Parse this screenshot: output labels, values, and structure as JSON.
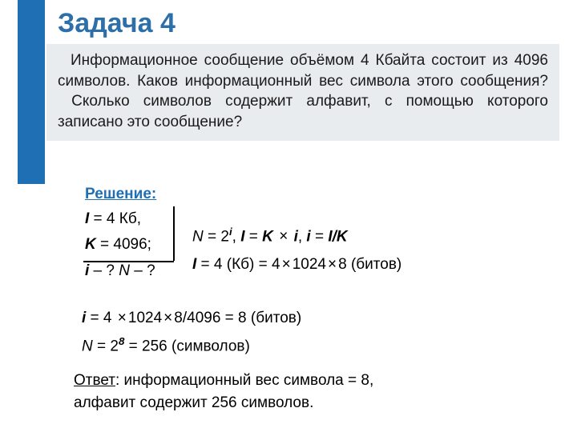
{
  "title": "Задача 4",
  "problem_text": "  Информационное сообщение объёмом 4 Кбайта состоит из 4096 символов. Каков информационный вес символа этого сообщения?  Сколько символов содержит алфавит, с помощью которого записано это сообщение?",
  "solution_label": "Решение:",
  "given": {
    "line1_var": "I",
    "line1_rest": " = 4 Кб,",
    "line2_var": "K",
    "line2_rest": " = 4096;",
    "line3_a": "i",
    "line3_mid": " – ?  ",
    "line3_b": "N",
    "line3_end": "  – ?"
  },
  "formulas": {
    "row1_pre": "N",
    "row1_a": " = 2",
    "row1_exp": "i",
    "row1_b": ",  ",
    "row1_c": "I",
    "row1_d": " = ",
    "row1_e": "K",
    "row1_f": " ",
    "row1_mult": "×",
    "row1_g": " ",
    "row1_h": "i",
    "row1_i": ",     ",
    "row1_j": "i",
    "row1_k": " = ",
    "row1_l": "I/K",
    "row2_a": "I",
    "row2_b": " = 4 (Кб) = 4",
    "row2_m1": "×",
    "row2_c": "1024",
    "row2_m2": "×",
    "row2_d": "8 (битов)"
  },
  "calc": {
    "r1_a": "i",
    "r1_b": " = 4 ",
    "r1_m1": "×",
    "r1_c": "1024",
    "r1_m2": "×",
    "r1_d": "8/4096 = 8 (битов)",
    "r2_a": "N",
    "r2_b": " = 2",
    "r2_exp": "8",
    "r2_c": " = 256 (символов)"
  },
  "answer": {
    "label": "Ответ",
    "rest1": ": информационный вес символа = 8,",
    "rest2": "алфавит содержит 256 символов."
  },
  "colors": {
    "accent": "#1f6fb5",
    "title": "#2d6fa8",
    "box_bg": "#e8ecef"
  }
}
